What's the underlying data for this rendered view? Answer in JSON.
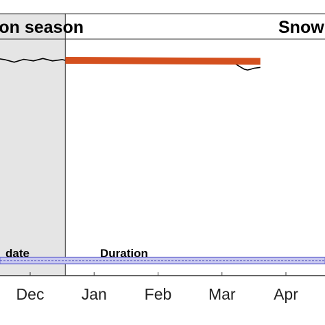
{
  "chart_data": {
    "type": "line",
    "title": "",
    "xlabel": "",
    "ylabel": "",
    "x_axis": {
      "ticks": [
        "Dec",
        "Jan",
        "Feb",
        "Mar",
        "Apr"
      ],
      "tick_months": [
        1,
        2,
        3,
        4,
        5
      ]
    },
    "y_range": [
      0,
      1
    ],
    "grid": false,
    "regions": [
      {
        "label": "on season",
        "x_range": [
          0,
          1.55
        ],
        "color": "#e5e5e5"
      },
      {
        "label": "Snow",
        "x_range": [
          1.55,
          4.6
        ],
        "color": "#ffffff"
      }
    ],
    "annotations": {
      "date_label": "date",
      "duration_label": "Duration"
    },
    "series": [
      {
        "color": "#000000",
        "x": [
          0,
          0.15,
          0.3,
          0.45,
          0.6,
          0.75,
          0.9,
          1.05,
          1.2,
          1.35,
          1.5,
          1.55
        ],
        "y": [
          0.83,
          0.83,
          0.827,
          0.83,
          0.825,
          0.815,
          0.826,
          0.82,
          0.829,
          0.82,
          0.825,
          0.822
        ]
      },
      {
        "color": "#000000",
        "x": [
          2.3,
          2.35,
          2.4,
          2.5,
          2.6,
          2.7,
          2.75,
          2.8,
          3.0,
          3.2,
          3.4,
          3.6,
          3.8,
          4.0,
          4.2,
          4.3,
          4.35,
          4.4,
          4.45,
          4.5,
          4.6
        ],
        "y": [
          0.82,
          0.815,
          0.818,
          0.822,
          0.818,
          0.817,
          0.814,
          0.82,
          0.822,
          0.822,
          0.822,
          0.822,
          0.822,
          0.822,
          0.81,
          0.795,
          0.788,
          0.785,
          0.788,
          0.792,
          0.795
        ]
      },
      {
        "color": "#d4501e",
        "x": [
          1.55,
          4.6
        ],
        "y": [
          0.822,
          0.818
        ]
      }
    ],
    "band": {
      "x_range": [
        0,
        4.6
      ],
      "y_range": [
        0.045,
        0.07
      ],
      "color": "#c8c8f0"
    }
  }
}
